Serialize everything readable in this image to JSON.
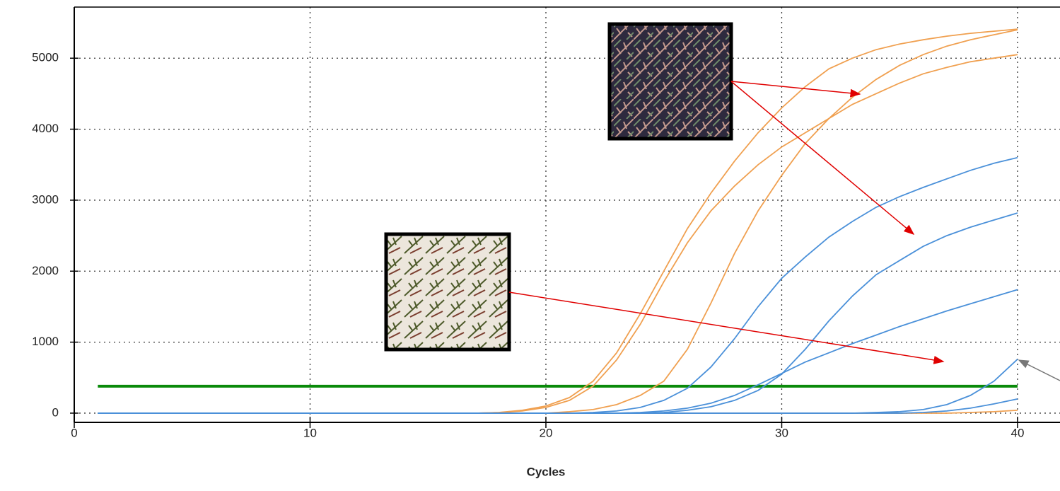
{
  "chart_data": {
    "type": "line",
    "x_label": "Cycles",
    "x": [
      1,
      2,
      3,
      4,
      5,
      6,
      7,
      8,
      9,
      10,
      11,
      12,
      13,
      14,
      15,
      16,
      17,
      18,
      19,
      20,
      21,
      22,
      23,
      24,
      25,
      26,
      27,
      28,
      29,
      30,
      31,
      32,
      33,
      34,
      35,
      36,
      37,
      38,
      39,
      40
    ],
    "xlim": [
      0,
      41.8
    ],
    "xticks": [
      0,
      10,
      20,
      30,
      40
    ],
    "ylim": [
      -130,
      5720
    ],
    "yticks": [
      0,
      1000,
      2000,
      3000,
      4000,
      5000
    ],
    "grid": true,
    "threshold": 380,
    "threshold_color": "#0a8a0a",
    "series": [
      {
        "color": "#f0a050",
        "values": [
          0,
          0,
          0,
          0,
          0,
          0,
          0,
          0,
          0,
          0,
          0,
          0,
          0,
          0,
          0,
          0,
          0,
          10,
          40,
          100,
          220,
          450,
          850,
          1400,
          2000,
          2600,
          3100,
          3550,
          3950,
          4300,
          4600,
          4850,
          5000,
          5120,
          5200,
          5260,
          5310,
          5350,
          5380,
          5410
        ]
      },
      {
        "color": "#f0a050",
        "values": [
          0,
          0,
          0,
          0,
          0,
          0,
          0,
          0,
          0,
          0,
          0,
          0,
          0,
          0,
          0,
          0,
          0,
          8,
          30,
          80,
          180,
          380,
          750,
          1250,
          1850,
          2400,
          2850,
          3200,
          3500,
          3750,
          3950,
          4150,
          4350,
          4500,
          4650,
          4780,
          4870,
          4950,
          5000,
          5050
        ]
      },
      {
        "color": "#f0a050",
        "values": [
          0,
          0,
          0,
          0,
          0,
          0,
          0,
          0,
          0,
          0,
          0,
          0,
          0,
          0,
          0,
          0,
          0,
          0,
          0,
          0,
          20,
          50,
          120,
          250,
          450,
          900,
          1550,
          2250,
          2850,
          3350,
          3800,
          4150,
          4450,
          4700,
          4900,
          5050,
          5170,
          5260,
          5330,
          5400
        ]
      },
      {
        "color": "#f0a050",
        "values": [
          0,
          0,
          0,
          0,
          0,
          0,
          0,
          0,
          0,
          0,
          0,
          0,
          0,
          0,
          0,
          0,
          0,
          0,
          0,
          0,
          0,
          0,
          0,
          0,
          0,
          0,
          0,
          0,
          0,
          0,
          0,
          0,
          0,
          0,
          0,
          0,
          0,
          10,
          20,
          40
        ]
      },
      {
        "color": "#4a90d9",
        "values": [
          0,
          0,
          0,
          0,
          0,
          0,
          0,
          0,
          0,
          0,
          0,
          0,
          0,
          0,
          0,
          0,
          0,
          0,
          0,
          0,
          0,
          10,
          30,
          80,
          180,
          350,
          650,
          1050,
          1500,
          1900,
          2200,
          2480,
          2700,
          2900,
          3050,
          3180,
          3300,
          3420,
          3520,
          3600
        ]
      },
      {
        "color": "#4a90d9",
        "values": [
          0,
          0,
          0,
          0,
          0,
          0,
          0,
          0,
          0,
          0,
          0,
          0,
          0,
          0,
          0,
          0,
          0,
          0,
          0,
          0,
          0,
          0,
          0,
          0,
          10,
          40,
          90,
          180,
          320,
          550,
          900,
          1300,
          1650,
          1950,
          2150,
          2350,
          2500,
          2620,
          2720,
          2820
        ]
      },
      {
        "color": "#4a90d9",
        "values": [
          0,
          0,
          0,
          0,
          0,
          0,
          0,
          0,
          0,
          0,
          0,
          0,
          0,
          0,
          0,
          0,
          0,
          0,
          0,
          0,
          0,
          0,
          0,
          10,
          30,
          70,
          140,
          250,
          400,
          560,
          720,
          850,
          980,
          1100,
          1220,
          1330,
          1440,
          1540,
          1640,
          1740
        ]
      },
      {
        "color": "#4a90d9",
        "values": [
          0,
          0,
          0,
          0,
          0,
          0,
          0,
          0,
          0,
          0,
          0,
          0,
          0,
          0,
          0,
          0,
          0,
          0,
          0,
          0,
          0,
          0,
          0,
          0,
          0,
          0,
          0,
          0,
          0,
          0,
          0,
          0,
          0,
          10,
          20,
          50,
          120,
          250,
          450,
          760
        ]
      },
      {
        "color": "#4a90d9",
        "values": [
          0,
          0,
          0,
          0,
          0,
          0,
          0,
          0,
          0,
          0,
          0,
          0,
          0,
          0,
          0,
          0,
          0,
          0,
          0,
          0,
          0,
          0,
          0,
          0,
          0,
          0,
          0,
          0,
          0,
          0,
          0,
          0,
          0,
          0,
          0,
          10,
          30,
          70,
          130,
          200
        ]
      }
    ]
  }
}
